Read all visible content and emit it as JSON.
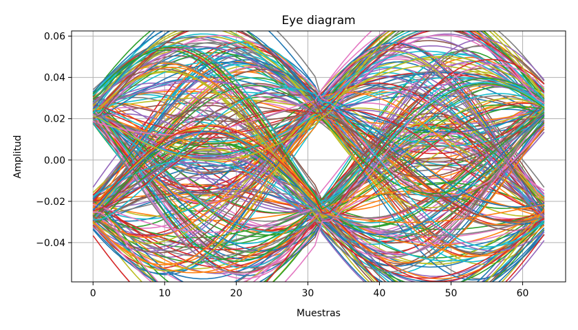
{
  "chart_data": {
    "type": "line",
    "title": "Eye diagram",
    "xlabel": "Muestras",
    "ylabel": "Amplitud",
    "xlim": [
      -3,
      66
    ],
    "ylim": [
      -0.059,
      0.0625
    ],
    "xticks": [
      0,
      10,
      20,
      30,
      40,
      50,
      60
    ],
    "xtick_labels": [
      "0",
      "10",
      "20",
      "30",
      "40",
      "50",
      "60"
    ],
    "yticks": [
      -0.04,
      -0.02,
      0.0,
      0.02,
      0.04,
      0.06
    ],
    "ytick_labels": [
      "−0.04",
      "−0.02",
      "0.00",
      "0.02",
      "0.04",
      "0.06"
    ],
    "grid": true,
    "samples_per_trace": 64,
    "symbol_period": 32,
    "symbol_levels": [
      0.025,
      -0.025
    ],
    "peak_amplitude_max": 0.057,
    "peak_amplitude_min": -0.054,
    "series_count": 260,
    "series_colors": [
      "#1f77b4",
      "#ff7f0e",
      "#2ca02c",
      "#d62728",
      "#9467bd",
      "#8c564b",
      "#e377c2",
      "#7f7f7f",
      "#bcbd22",
      "#17becf"
    ]
  }
}
